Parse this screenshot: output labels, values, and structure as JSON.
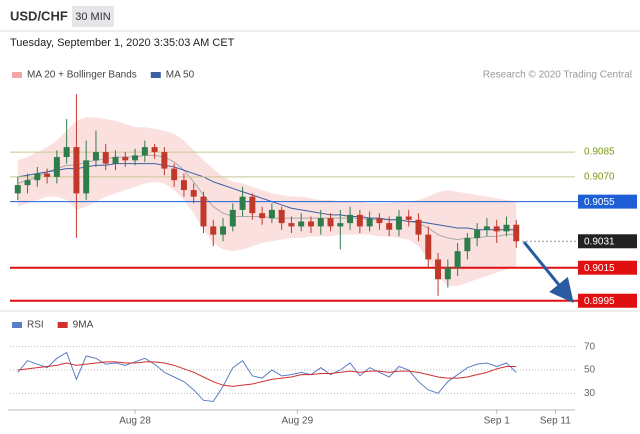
{
  "header": {
    "pair": "USD/CHF",
    "timeframe": "30 MIN",
    "datetime": "Tuesday, September 1, 2020 3:35:03 AM CET",
    "credit": "Research © 2020 Trading Central"
  },
  "chart_data": [
    {
      "type": "candlestick",
      "x": [
        0,
        1,
        2,
        3,
        4,
        5,
        6,
        7,
        8,
        9,
        10,
        11,
        12,
        13,
        14,
        15,
        16,
        17,
        18,
        19,
        20,
        21,
        22,
        23,
        24,
        25,
        26,
        27,
        28,
        29,
        30,
        31,
        32,
        33,
        34,
        35,
        36,
        37,
        38,
        39,
        40,
        41,
        42,
        43,
        44,
        45,
        46,
        47,
        48,
        49,
        50,
        51
      ],
      "open": [
        0.906,
        0.9065,
        0.9068,
        0.9072,
        0.907,
        0.9082,
        0.9088,
        0.906,
        0.908,
        0.9085,
        0.9078,
        0.9082,
        0.908,
        0.9083,
        0.9088,
        0.9085,
        0.9075,
        0.9068,
        0.9062,
        0.9058,
        0.904,
        0.9035,
        0.904,
        0.905,
        0.9058,
        0.9048,
        0.9045,
        0.905,
        0.9042,
        0.904,
        0.9043,
        0.904,
        0.9045,
        0.904,
        0.9042,
        0.9047,
        0.904,
        0.9045,
        0.9042,
        0.9038,
        0.9046,
        0.9044,
        0.9035,
        0.902,
        0.9008,
        0.9015,
        0.9025,
        0.9033,
        0.9038,
        0.904,
        0.9037,
        0.9041
      ],
      "high": [
        0.907,
        0.9072,
        0.9076,
        0.9075,
        0.9086,
        0.9105,
        0.912,
        0.9092,
        0.9098,
        0.909,
        0.9086,
        0.9085,
        0.9087,
        0.9092,
        0.909,
        0.9088,
        0.9078,
        0.9072,
        0.9066,
        0.9061,
        0.9044,
        0.9045,
        0.9054,
        0.9064,
        0.906,
        0.9052,
        0.9054,
        0.9052,
        0.9046,
        0.9048,
        0.9046,
        0.905,
        0.9048,
        0.905,
        0.9052,
        0.905,
        0.9049,
        0.9048,
        0.9046,
        0.905,
        0.905,
        0.9048,
        0.904,
        0.9024,
        0.902,
        0.903,
        0.9036,
        0.9042,
        0.9045,
        0.9044,
        0.9046,
        0.9044
      ],
      "low": [
        0.9056,
        0.906,
        0.9064,
        0.9066,
        0.9066,
        0.9078,
        0.9033,
        0.9056,
        0.9076,
        0.9074,
        0.9074,
        0.9076,
        0.9077,
        0.9079,
        0.9081,
        0.9071,
        0.9064,
        0.9058,
        0.9054,
        0.9036,
        0.9028,
        0.9031,
        0.9037,
        0.9046,
        0.9044,
        0.9041,
        0.9042,
        0.9038,
        0.9036,
        0.9037,
        0.9036,
        0.9035,
        0.9037,
        0.9026,
        0.9038,
        0.9036,
        0.9037,
        0.9038,
        0.9034,
        0.9034,
        0.904,
        0.9031,
        0.9015,
        0.8998,
        0.9003,
        0.901,
        0.902,
        0.9028,
        0.9034,
        0.903,
        0.9034,
        0.9027
      ],
      "close": [
        0.9065,
        0.9068,
        0.9072,
        0.907,
        0.9082,
        0.9088,
        0.906,
        0.908,
        0.9085,
        0.9078,
        0.9082,
        0.908,
        0.9083,
        0.9088,
        0.9085,
        0.9075,
        0.9068,
        0.9062,
        0.9058,
        0.904,
        0.9035,
        0.904,
        0.905,
        0.9058,
        0.9048,
        0.9045,
        0.905,
        0.9042,
        0.904,
        0.9043,
        0.904,
        0.9045,
        0.904,
        0.9042,
        0.9047,
        0.904,
        0.9045,
        0.9042,
        0.9038,
        0.9046,
        0.9044,
        0.9035,
        0.902,
        0.9008,
        0.9015,
        0.9025,
        0.9033,
        0.9038,
        0.904,
        0.9037,
        0.9041,
        0.9031
      ],
      "up_color": "#2f7d4a",
      "down_color": "#c0392b",
      "bands": {
        "name": "MA 20 + Bollinger Bands",
        "color": "#f4a6a6",
        "upper": [
          0.908,
          0.9082,
          0.9085,
          0.9088,
          0.9092,
          0.9098,
          0.9104,
          0.9106,
          0.9106,
          0.9105,
          0.9104,
          0.9102,
          0.91,
          0.91,
          0.9099,
          0.9098,
          0.9096,
          0.9092,
          0.9086,
          0.908,
          0.9075,
          0.907,
          0.9067,
          0.9066,
          0.9064,
          0.9062,
          0.906,
          0.9059,
          0.9058,
          0.9058,
          0.9057,
          0.9056,
          0.9056,
          0.9055,
          0.9055,
          0.9055,
          0.9054,
          0.9054,
          0.9054,
          0.9055,
          0.9055,
          0.9056,
          0.9058,
          0.9061,
          0.9062,
          0.9061,
          0.906,
          0.9059,
          0.9058,
          0.9057,
          0.9056,
          0.9055
        ],
        "middle": [
          0.9066,
          0.9068,
          0.907,
          0.9073,
          0.9075,
          0.9077,
          0.9077,
          0.9079,
          0.908,
          0.9081,
          0.9082,
          0.9082,
          0.9082,
          0.9083,
          0.9083,
          0.9082,
          0.9079,
          0.9074,
          0.9067,
          0.9059,
          0.9052,
          0.9048,
          0.9046,
          0.9046,
          0.9046,
          0.9046,
          0.9045,
          0.9045,
          0.9045,
          0.9045,
          0.9045,
          0.9045,
          0.9045,
          0.9045,
          0.9045,
          0.9045,
          0.9044,
          0.9044,
          0.9044,
          0.9044,
          0.9043,
          0.9042,
          0.9039,
          0.9035,
          0.9033,
          0.9032,
          0.9033,
          0.9033,
          0.9034,
          0.9034,
          0.9035,
          0.9035
        ],
        "lower": [
          0.9052,
          0.9054,
          0.9056,
          0.9058,
          0.9058,
          0.9056,
          0.905,
          0.9052,
          0.9055,
          0.9058,
          0.906,
          0.9062,
          0.9064,
          0.9066,
          0.9067,
          0.9066,
          0.9062,
          0.9056,
          0.9048,
          0.9038,
          0.903,
          0.9026,
          0.9025,
          0.9026,
          0.9028,
          0.903,
          0.9031,
          0.9032,
          0.9033,
          0.9033,
          0.9034,
          0.9034,
          0.9034,
          0.9035,
          0.9035,
          0.9035,
          0.9035,
          0.9034,
          0.9034,
          0.9033,
          0.9032,
          0.9028,
          0.902,
          0.901,
          0.9004,
          0.9004,
          0.9006,
          0.9008,
          0.901,
          0.9012,
          0.9014,
          0.9016
        ]
      },
      "ma50": {
        "name": "MA 50",
        "color": "#3b5fa0",
        "values": [
          0.907,
          0.9071,
          0.9072,
          0.9073,
          0.9074,
          0.9075,
          0.9075,
          0.9076,
          0.9077,
          0.9077,
          0.9078,
          0.9078,
          0.9078,
          0.9078,
          0.9078,
          0.9077,
          0.9076,
          0.9074,
          0.9072,
          0.907,
          0.9067,
          0.9065,
          0.9063,
          0.9061,
          0.9059,
          0.9057,
          0.9055,
          0.9053,
          0.9051,
          0.905,
          0.9049,
          0.9048,
          0.9047,
          0.9047,
          0.9046,
          0.9046,
          0.9045,
          0.9045,
          0.9044,
          0.9044,
          0.9043,
          0.9043,
          0.9042,
          0.9041,
          0.904,
          0.9039,
          0.9039,
          0.9038,
          0.9038,
          0.9038,
          0.9038,
          0.9038
        ]
      },
      "hlines": [
        {
          "value": 0.9085,
          "color": "#7a9a1a",
          "kind": "text"
        },
        {
          "value": 0.907,
          "label": "0.9070",
          "color": "#7a9a1a",
          "kind": "text"
        },
        {
          "value": 0.9055,
          "color": "#1f5fd6",
          "kind": "box"
        },
        {
          "value": 0.9031,
          "color": "#222222",
          "kind": "current"
        },
        {
          "value": 0.9015,
          "color": "#e01010",
          "kind": "box"
        },
        {
          "value": 0.8995,
          "color": "#e01010",
          "kind": "box"
        }
      ],
      "xlim": [
        -1,
        56.5
      ],
      "ylim": [
        0.899,
        0.9125
      ]
    },
    {
      "type": "line",
      "x": [
        0,
        1,
        2,
        3,
        4,
        5,
        6,
        7,
        8,
        9,
        10,
        11,
        12,
        13,
        14,
        15,
        16,
        17,
        18,
        19,
        20,
        21,
        22,
        23,
        24,
        25,
        26,
        27,
        28,
        29,
        30,
        31,
        32,
        33,
        34,
        35,
        36,
        37,
        38,
        39,
        40,
        41,
        42,
        43,
        44,
        45,
        46,
        47,
        48,
        49,
        50,
        51
      ],
      "series": [
        {
          "name": "RSI",
          "color": "#5b7fc4",
          "values": [
            48,
            58,
            55,
            52,
            60,
            65,
            42,
            62,
            60,
            55,
            56,
            54,
            57,
            60,
            55,
            48,
            44,
            40,
            33,
            24,
            23,
            36,
            52,
            58,
            45,
            43,
            50,
            45,
            46,
            48,
            46,
            52,
            46,
            50,
            56,
            45,
            52,
            48,
            44,
            53,
            50,
            40,
            33,
            30,
            40,
            46,
            52,
            55,
            56,
            53,
            56,
            48
          ]
        },
        {
          "name": "9MA",
          "color": "#d03030",
          "values": [
            50,
            51,
            52,
            53,
            54,
            56,
            54,
            55,
            56,
            57,
            57,
            56,
            56,
            57,
            57,
            56,
            54,
            51,
            48,
            44,
            40,
            37,
            36,
            37,
            38,
            40,
            42,
            43,
            44,
            46,
            46,
            47,
            47,
            48,
            49,
            48,
            49,
            49,
            48,
            49,
            49,
            48,
            46,
            44,
            43,
            43,
            44,
            46,
            48,
            51,
            53,
            53
          ]
        }
      ],
      "xlim": [
        -1,
        56.5
      ],
      "ylim": [
        20,
        80
      ],
      "yticks": [
        30,
        50,
        70
      ],
      "grid": true,
      "xticks": [
        {
          "value": 12,
          "label": "Aug 28"
        },
        {
          "value": 28.6,
          "label": "Aug 29"
        },
        {
          "value": 49,
          "label": "Sep 1"
        },
        {
          "value": 55,
          "label": "Sep 11"
        }
      ]
    }
  ]
}
